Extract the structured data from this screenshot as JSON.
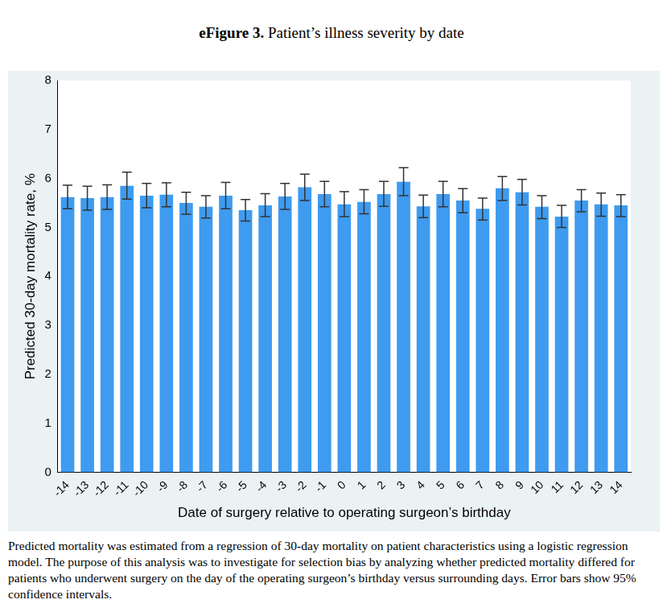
{
  "chart_data": {
    "type": "bar",
    "title": "eFigure 3. Patient’s illness severity by date",
    "x_label": "Date of surgery relative to operating surgeon’s birthday",
    "y_label": "Predicted 30-day mortality rate, %",
    "caption": "Predicted mortality was estimated from a regression of 30-day mortality on patient characteristics using a logistic regression model. The purpose of this analysis was to investigate for selection bias by analyzing whether predicted mortality differed for patients who underwent surgery on the day of the operating surgeon’s birthday versus surrounding days. Error bars show 95% confidence intervals.",
    "categories": [
      -14,
      -13,
      -12,
      -11,
      -10,
      -9,
      -8,
      -7,
      -6,
      -5,
      -4,
      -3,
      -2,
      -1,
      0,
      1,
      2,
      3,
      4,
      5,
      6,
      7,
      8,
      9,
      10,
      11,
      12,
      13,
      14
    ],
    "values": [
      5.62,
      5.6,
      5.62,
      5.85,
      5.65,
      5.67,
      5.5,
      5.42,
      5.65,
      5.35,
      5.45,
      5.63,
      5.82,
      5.68,
      5.47,
      5.52,
      5.68,
      5.93,
      5.43,
      5.68,
      5.55,
      5.38,
      5.8,
      5.72,
      5.42,
      5.22,
      5.55,
      5.47,
      5.45
    ],
    "ci_low": [
      5.38,
      5.35,
      5.37,
      5.58,
      5.4,
      5.42,
      5.27,
      5.19,
      5.38,
      5.13,
      5.22,
      5.37,
      5.55,
      5.42,
      5.22,
      5.28,
      5.43,
      5.65,
      5.2,
      5.42,
      5.3,
      5.15,
      5.55,
      5.46,
      5.18,
      5.0,
      5.32,
      5.23,
      5.22
    ],
    "ci_high": [
      5.86,
      5.84,
      5.87,
      6.13,
      5.9,
      5.91,
      5.72,
      5.65,
      5.92,
      5.57,
      5.69,
      5.9,
      6.09,
      5.94,
      5.73,
      5.77,
      5.94,
      6.22,
      5.66,
      5.94,
      5.79,
      5.6,
      6.04,
      5.98,
      5.65,
      5.45,
      5.77,
      5.7,
      5.67
    ],
    "color": "#3e9bf0",
    "ylim": [
      0,
      8
    ],
    "yticks": [
      0,
      1,
      2,
      3,
      4,
      5,
      6,
      7,
      8
    ],
    "grid": false
  }
}
